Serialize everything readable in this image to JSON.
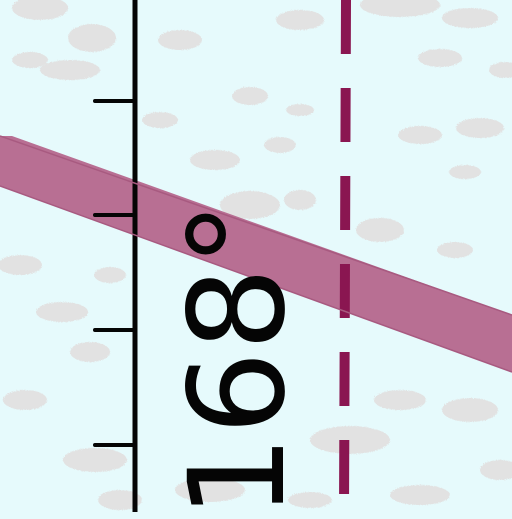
{
  "map": {
    "bearing_label": "168°",
    "colors": {
      "background": "#e6fafc",
      "terrain_speckle": "#e2e2e2",
      "route_band": "#b86f93",
      "dashed_line": "#8a1651",
      "tick_scale": "#050505"
    },
    "features": [
      {
        "name": "route-band",
        "type": "airway band"
      },
      {
        "name": "dashed-boundary",
        "type": "dashed vertical boundary"
      },
      {
        "name": "tick-scale",
        "type": "compass tick scale"
      }
    ]
  }
}
